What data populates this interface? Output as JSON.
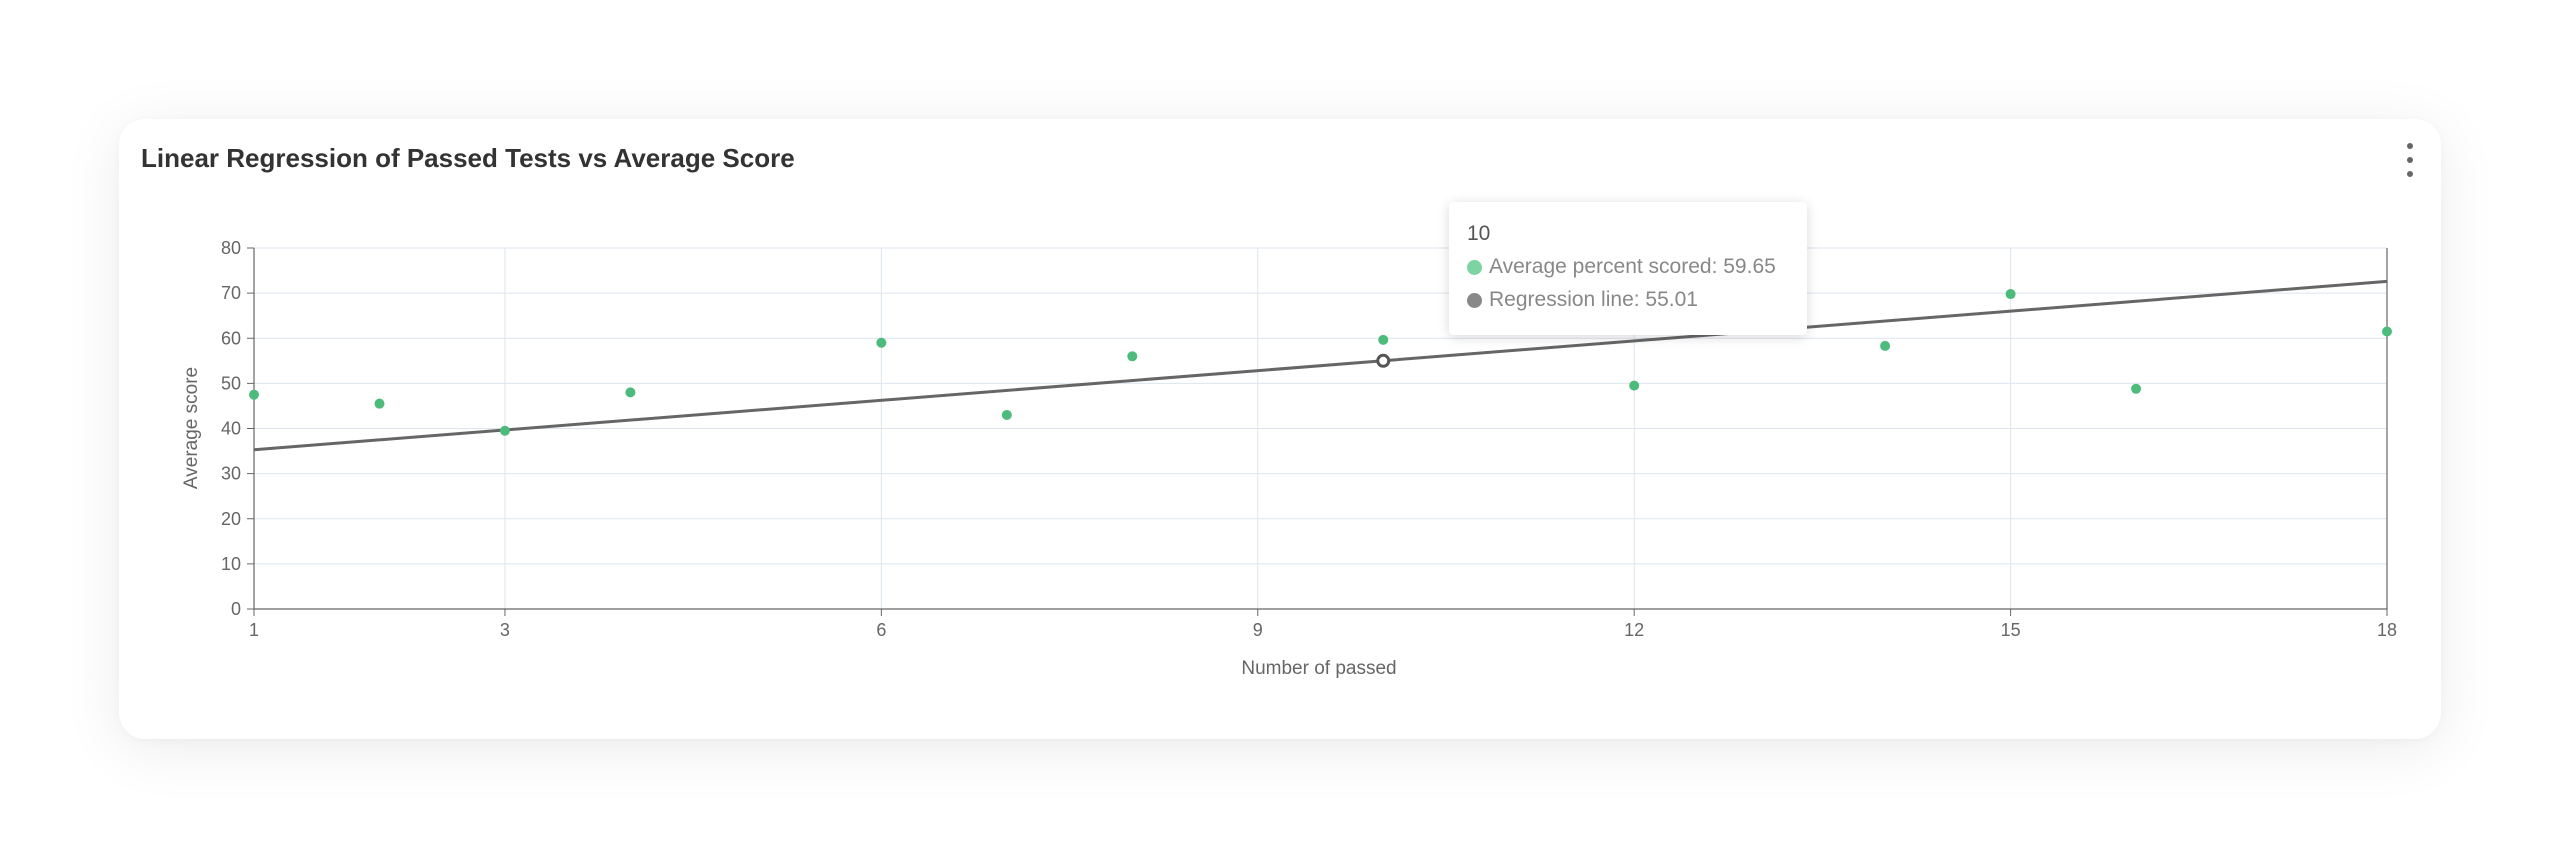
{
  "card": {
    "title": "Linear Regression of Passed Tests vs Average Score",
    "menu_icon": "more-vertical-icon"
  },
  "colors": {
    "scatter": "#4cbb7c",
    "regression": "#666666",
    "grid": "#dde4ef",
    "axis": "#666666",
    "tooltip_scatter_dot": "#7ed3a3",
    "tooltip_regression_dot": "#888888"
  },
  "tooltip": {
    "header": "10",
    "rows": [
      {
        "label": "Average percent scored: 59.65",
        "color": "#7ed3a3"
      },
      {
        "label": "Regression line: 55.01",
        "color": "#888888"
      }
    ]
  },
  "chart_data": {
    "type": "scatter",
    "title": "Linear Regression of Passed Tests vs Average Score",
    "xlabel": "Number of passed",
    "ylabel": "Average score",
    "xlim": [
      1,
      18
    ],
    "ylim": [
      0,
      80
    ],
    "xticks": [
      1,
      3,
      6,
      9,
      12,
      15,
      18
    ],
    "yticks": [
      0,
      10,
      20,
      30,
      40,
      50,
      60,
      70,
      80
    ],
    "grid": true,
    "series": [
      {
        "name": "Average percent scored",
        "kind": "scatter",
        "points": [
          {
            "x": 1,
            "y": 47.5
          },
          {
            "x": 2,
            "y": 45.5
          },
          {
            "x": 3,
            "y": 39.5
          },
          {
            "x": 4,
            "y": 48
          },
          {
            "x": 6,
            "y": 59
          },
          {
            "x": 7,
            "y": 43
          },
          {
            "x": 8,
            "y": 56
          },
          {
            "x": 10,
            "y": 59.65
          },
          {
            "x": 12,
            "y": 49.5
          },
          {
            "x": 14,
            "y": 58.3
          },
          {
            "x": 15,
            "y": 69.8
          },
          {
            "x": 16,
            "y": 48.8
          },
          {
            "x": 18,
            "y": 61.5
          }
        ]
      },
      {
        "name": "Regression line",
        "kind": "line",
        "points": [
          {
            "x": 1,
            "y": 35.3
          },
          {
            "x": 10,
            "y": 55.01
          },
          {
            "x": 18,
            "y": 72.6
          }
        ]
      }
    ],
    "highlight": {
      "x": 10,
      "y": 55.01
    }
  }
}
